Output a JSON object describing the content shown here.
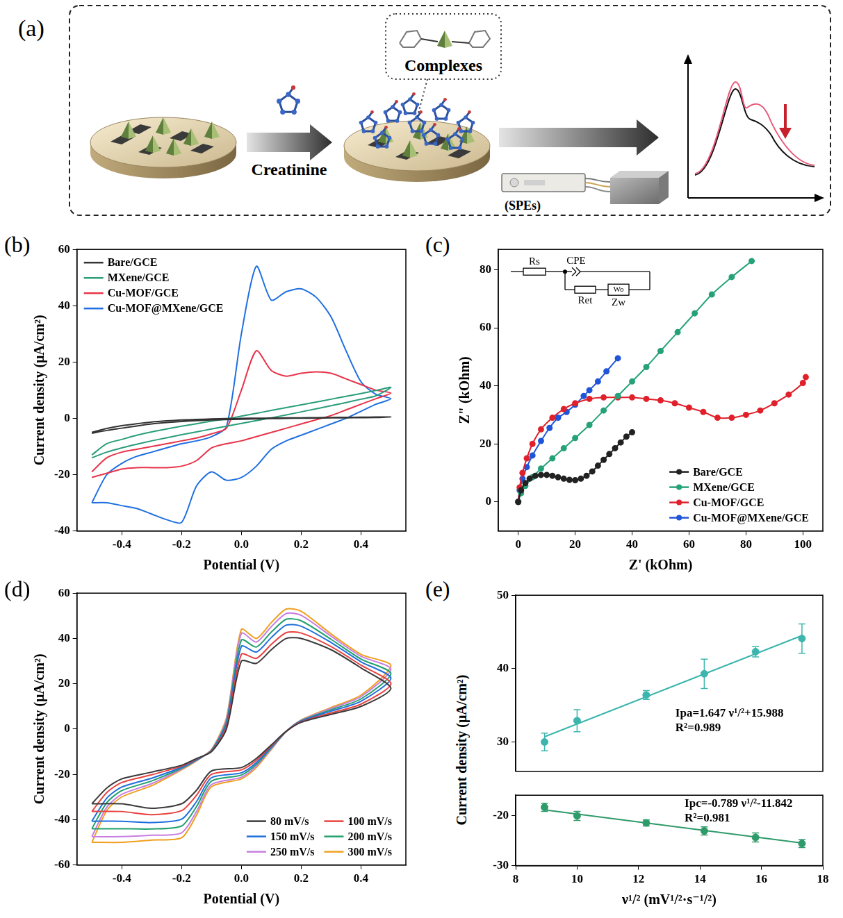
{
  "panel_a": {
    "label": "(a)",
    "texts": {
      "reagent": "Creatinine",
      "product": "Complexes",
      "device": "(SPEs)"
    }
  },
  "chart_data": [
    {
      "panel": "(b)",
      "type": "line",
      "xlabel": "Potential (V)",
      "ylabel": "Current density (μA/cm²)",
      "xlim": [
        -0.55,
        0.55
      ],
      "xticks": [
        -0.4,
        -0.2,
        {
          "value": 0,
          "label": "0.0"
        },
        0.2,
        0.4
      ],
      "ylim": [
        -40,
        60
      ],
      "yticks": [
        -40,
        -20,
        0,
        20,
        40,
        60
      ],
      "grid": false,
      "legend": "upper left",
      "x": [
        -0.5,
        -0.45,
        -0.4,
        -0.35,
        -0.3,
        -0.25,
        -0.2,
        -0.15,
        -0.1,
        -0.05,
        0,
        0.05,
        0.1,
        0.15,
        0.2,
        0.25,
        0.3,
        0.35,
        0.4,
        0.45,
        0.5,
        0.45,
        0.4,
        0.35,
        0.3,
        0.25,
        0.2,
        0.15,
        0.1,
        0.05,
        0,
        -0.05,
        -0.1,
        -0.15,
        -0.2,
        -0.25,
        -0.3,
        -0.35,
        -0.4,
        -0.45,
        -0.5
      ],
      "series": [
        {
          "name": "Bare/GCE",
          "color": "#333333",
          "values": [
            -5,
            -3.6,
            -2.6,
            -1.9,
            -1.3,
            -0.9,
            -0.6,
            -0.4,
            -0.2,
            -0.1,
            0,
            0.05,
            0.1,
            0.15,
            0.2,
            0.25,
            0.3,
            0.35,
            0.4,
            0.45,
            0.5,
            0.3,
            0.25,
            0.2,
            0.15,
            0.1,
            0.05,
            0,
            -0.1,
            -0.2,
            -0.3,
            -0.45,
            -0.6,
            -0.8,
            -1.1,
            -1.5,
            -2,
            -2.7,
            -3.5,
            -4.3,
            -5.3
          ]
        },
        {
          "name": "MXene/GCE",
          "color": "#2a9d7a",
          "values": [
            -13,
            -9,
            -7.5,
            -6,
            -4.8,
            -3.8,
            -2.8,
            -1.9,
            -1,
            -0.2,
            0.8,
            1.8,
            2.8,
            3.8,
            4.8,
            5.8,
            6.8,
            7.8,
            8.8,
            9.9,
            11,
            8,
            6.8,
            5.6,
            4.5,
            3.4,
            2.3,
            1.2,
            0.2,
            -0.8,
            -1.8,
            -2.8,
            -3.8,
            -4.8,
            -5.8,
            -6.9,
            -8,
            -9.2,
            -10.5,
            -12,
            -14
          ]
        },
        {
          "name": "Cu-MOF/GCE",
          "color": "#e8344a",
          "values": [
            -19,
            -14,
            -12,
            -11,
            -10,
            -9,
            -8,
            -7,
            -5.5,
            -3.5,
            10,
            24,
            17,
            15,
            16,
            16.5,
            16,
            14,
            12,
            10,
            9,
            7,
            5,
            3,
            1,
            -0.5,
            -2,
            -3.5,
            -5,
            -6.5,
            -8,
            -9,
            -10.5,
            -15,
            -17,
            -17.5,
            -17.5,
            -17.5,
            -18,
            -19.5,
            -21
          ]
        },
        {
          "name": "Cu-MOF@MXene/GCE",
          "color": "#1f6fe0",
          "values": [
            -30,
            -20,
            -16,
            -13.5,
            -12,
            -10.5,
            -9,
            -8,
            -6.5,
            -3,
            30,
            54,
            42,
            45,
            46,
            43,
            36,
            24,
            13,
            8.5,
            7,
            5,
            2.5,
            0,
            -2,
            -4,
            -6,
            -8,
            -11,
            -17,
            -21,
            -22,
            -19,
            -24,
            -37,
            -36,
            -34,
            -32,
            -31,
            -30,
            -30
          ]
        }
      ]
    },
    {
      "panel": "(c)",
      "type": "line",
      "marker": "circle",
      "xlabel": "Z' (kOhm)",
      "ylabel": "Z\" (kOhm)",
      "xlim": [
        -7,
        107
      ],
      "xticks": [
        0,
        20,
        40,
        60,
        80,
        100
      ],
      "ylim": [
        -10,
        87
      ],
      "yticks": [
        0,
        20,
        40,
        60,
        80
      ],
      "grid": false,
      "legend": "lower right",
      "annotations": [
        "Rs",
        "CPE",
        "Ret",
        "Wo",
        "Zw"
      ],
      "series": [
        {
          "name": "Bare/GCE",
          "color": "#222222",
          "x": [
            0,
            1,
            2.5,
            4,
            6,
            8,
            10,
            12,
            14,
            16,
            18,
            20,
            22,
            24,
            26,
            28,
            30,
            32,
            34,
            36,
            38,
            40
          ],
          "values": [
            0,
            4,
            6.5,
            8,
            9,
            9.3,
            9.3,
            9,
            8.5,
            8,
            7.6,
            7.5,
            8,
            9,
            10.5,
            12.5,
            14.5,
            16.5,
            18.5,
            20.5,
            22.5,
            24
          ]
        },
        {
          "name": "MXene/GCE",
          "color": "#26a27a",
          "x": [
            0,
            1,
            2.5,
            5,
            8,
            12,
            16,
            20,
            25,
            30,
            35,
            40,
            45,
            50,
            56,
            62,
            68,
            75,
            82
          ],
          "values": [
            0,
            3,
            5.5,
            8.5,
            11.5,
            15,
            18.5,
            22,
            26.5,
            31.5,
            36.5,
            41.5,
            46.5,
            52,
            58.5,
            65,
            71.5,
            77.5,
            83
          ]
        },
        {
          "name": "Cu-MOF/GCE",
          "color": "#e0202a",
          "x": [
            0,
            0.5,
            1.5,
            3,
            5,
            8,
            12,
            16,
            20,
            25,
            30,
            35,
            40,
            45,
            50,
            55,
            60,
            65,
            70,
            75,
            80,
            85,
            90,
            95,
            100,
            101
          ],
          "values": [
            0,
            5,
            10,
            15,
            20,
            25,
            29,
            32,
            34,
            35.5,
            36,
            36,
            36,
            35.5,
            35,
            34,
            32.5,
            31,
            29,
            29,
            30,
            31.5,
            34,
            37,
            41,
            43
          ]
        },
        {
          "name": "Cu-MOF@MXene/GCE",
          "color": "#1f55d8",
          "x": [
            0,
            0.5,
            1.5,
            3,
            5,
            8,
            11,
            14,
            17,
            20,
            23,
            25,
            28,
            31,
            35
          ],
          "values": [
            0,
            4,
            8,
            12,
            16,
            21,
            25.5,
            29,
            31,
            33.5,
            36.5,
            38.5,
            41.5,
            45,
            49.5
          ]
        }
      ]
    },
    {
      "panel": "(d)",
      "type": "line",
      "xlabel": "Potential (V)",
      "ylabel": "Current density (μA/cm²)",
      "xlim": [
        -0.55,
        0.55
      ],
      "xticks": [
        -0.4,
        -0.2,
        {
          "value": 0,
          "label": "0.0"
        },
        0.2,
        0.4
      ],
      "ylim": [
        -60,
        60
      ],
      "yticks": [
        -60,
        -40,
        -20,
        0,
        20,
        40,
        60
      ],
      "grid": false,
      "legend": "lower right",
      "x": [
        -0.5,
        -0.45,
        -0.4,
        -0.3,
        -0.2,
        -0.15,
        -0.1,
        -0.05,
        0,
        0.05,
        0.1,
        0.15,
        0.2,
        0.3,
        0.4,
        0.5,
        0.4,
        0.3,
        0.2,
        0.15,
        0.1,
        0.05,
        0,
        -0.1,
        -0.15,
        -0.2,
        -0.3,
        -0.4,
        -0.5
      ],
      "series": [
        {
          "name": "80 mV/s",
          "color": "#3a3a3a",
          "values": [
            -33,
            -26,
            -22,
            -19,
            -16,
            -13,
            -10,
            0,
            30,
            29,
            35,
            40,
            40,
            35,
            27,
            18,
            10,
            6.5,
            3,
            -1,
            -7,
            -13,
            -17,
            -18.5,
            -27,
            -33,
            -35,
            -33,
            -33
          ]
        },
        {
          "name": "100 mV/s",
          "color": "#e8423f",
          "values": [
            -36.4,
            -28,
            -23.6,
            -20.2,
            -16.4,
            -13.2,
            -9.8,
            1,
            33,
            31.2,
            37.4,
            42.6,
            42.4,
            36.4,
            28.2,
            20,
            11,
            7.1,
            3.2,
            -1,
            -7.4,
            -13.8,
            -18,
            -20,
            -29.2,
            -36,
            -37.8,
            -36.4,
            -36.4
          ]
        },
        {
          "name": "150 mV/s",
          "color": "#1e6fdc",
          "values": [
            -40.7,
            -30.5,
            -25.6,
            -21.7,
            -16.9,
            -13.5,
            -9.6,
            2.3,
            36.5,
            34,
            40.4,
            45.9,
            45.4,
            38.2,
            29.7,
            22.5,
            12.3,
            7.9,
            3.5,
            -1,
            -7.9,
            -14.8,
            -19.3,
            -21.5,
            -32,
            -39.8,
            -41.3,
            -40.7,
            -40.7
          ]
        },
        {
          "name": "200 mV/s",
          "color": "#23a06e",
          "values": [
            -44,
            -32.5,
            -27.2,
            -22.9,
            -17.3,
            -13.7,
            -9.4,
            3.3,
            39.3,
            36.2,
            42.8,
            48.5,
            47.8,
            39.6,
            30.9,
            24.5,
            13.3,
            8.5,
            3.7,
            -1,
            -8.3,
            -15.6,
            -20.3,
            -23,
            -34.2,
            -42.8,
            -44.1,
            -44,
            -44
          ]
        },
        {
          "name": "250 mV/s",
          "color": "#c77ee0",
          "values": [
            -47.5,
            -34.5,
            -28.8,
            -24.1,
            -17.7,
            -13.9,
            -9.2,
            4.3,
            42.3,
            38.4,
            45.2,
            51,
            50.2,
            41,
            32.1,
            26.5,
            14.3,
            9.1,
            3.9,
            -1,
            -8.7,
            -16.4,
            -21.3,
            -24.5,
            -36.4,
            -45.8,
            -46.9,
            -47.5,
            -47.5
          ]
        },
        {
          "name": "300 mV/s",
          "color": "#f0a020",
          "values": [
            -50,
            -36,
            -30,
            -25,
            -18,
            -14,
            -9,
            5,
            44,
            40,
            47,
            53,
            52,
            42,
            33,
            28,
            15,
            9.5,
            4,
            -1,
            -9,
            -17,
            -22,
            -25.5,
            -38,
            -48,
            -49,
            -50,
            -50
          ]
        }
      ]
    },
    {
      "panel": "(e)",
      "type": "scatter",
      "marker": "circle",
      "xlabel": "ν¹/² (mV¹/²·s⁻¹/²)",
      "ylabel": "Current density (μA/cm²)",
      "xlim": [
        8,
        18
      ],
      "xticks": [
        8,
        10,
        12,
        14,
        16,
        18
      ],
      "ylim": [
        26,
        50
      ],
      "yticks": [
        30,
        40,
        50
      ],
      "y2lim": [
        -30,
        -16
      ],
      "y2ticks": [
        -30,
        -20
      ],
      "grid": false,
      "x": [
        8.94,
        10,
        12.25,
        14.14,
        15.81,
        17.32
      ],
      "series": [
        {
          "color": "#3bb5ad",
          "values": [
            30,
            32.9,
            36.4,
            39.3,
            42.3,
            44.1
          ],
          "errors": [
            1.2,
            1.5,
            0.6,
            2.0,
            0.7,
            2.0
          ],
          "fit_x": [
            8.94,
            17.32
          ],
          "fit_values": [
            30.71,
            44.51
          ],
          "annotations": [
            "Ipa=1.647 ν¹/²+15.988",
            "R²=0.989"
          ]
        },
        {
          "axis": "y2",
          "color": "#2f9a6a",
          "values": [
            -18.4,
            -20.1,
            -21.5,
            -23.1,
            -24.4,
            -25.6
          ],
          "errors": [
            0.8,
            0.9,
            0.6,
            0.8,
            0.9,
            0.8
          ],
          "fit_x": [
            8.94,
            17.32
          ],
          "fit_values": [
            -18.9,
            -25.51
          ],
          "annotations": [
            "Ipc=-0.789 ν¹/²-11.842",
            "R²=0.981"
          ]
        }
      ]
    }
  ]
}
